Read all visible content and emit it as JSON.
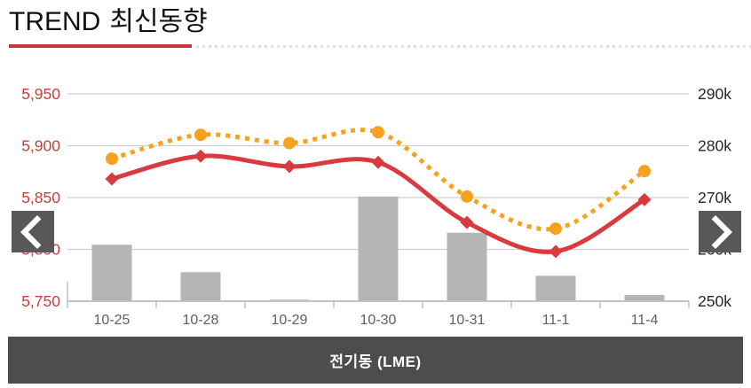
{
  "page": {
    "title_en": "TREND",
    "title_ko": "최신동향",
    "accent_underline_color": "#c9353c"
  },
  "carousel": {
    "caption": "전기동 (LME)",
    "prev_icon": "chevron-left",
    "next_icon": "chevron-right",
    "nav_bg_color": "#585858",
    "caption_bg_color": "#4d4d4d"
  },
  "chart_data": {
    "type": "combo",
    "title": "",
    "legend": "none",
    "grid": true,
    "categories": [
      "10-25",
      "10-28",
      "10-29",
      "10-30",
      "10-31",
      "11-1",
      "11-4"
    ],
    "series": [
      {
        "name": "red-solid-line",
        "type": "line",
        "axis": "left",
        "style": "solid",
        "marker": "diamond",
        "color": "#d93a40",
        "values": [
          5868,
          5890,
          5880,
          5884,
          5826,
          5798,
          5848
        ]
      },
      {
        "name": "orange-dotted-line",
        "type": "line",
        "axis": "right",
        "style": "dotted",
        "marker": "circle",
        "color": "#f7a11e",
        "values": [
          277500,
          282100,
          280500,
          282600,
          270200,
          264000,
          275100
        ]
      },
      {
        "name": "gray-bars",
        "type": "bar",
        "axis": "right",
        "color": "#b5b5b5",
        "values": [
          260900,
          255600,
          250300,
          270200,
          263200,
          254900,
          251200
        ]
      }
    ],
    "left_axis": {
      "min": 5750,
      "max": 5950,
      "ticks": [
        "5,950",
        "5,900",
        "5,850",
        "5,800",
        "5,750"
      ],
      "label_color": "#c2413e"
    },
    "right_axis": {
      "min": 250000,
      "max": 290000,
      "ticks": [
        "290k",
        "280k",
        "270k",
        "260k",
        "250k"
      ],
      "label_color": "#262626"
    },
    "colors": {
      "grid": "#cfcfcf",
      "axis": "#b9c5cd",
      "x_label": "#5f5f5f"
    }
  }
}
